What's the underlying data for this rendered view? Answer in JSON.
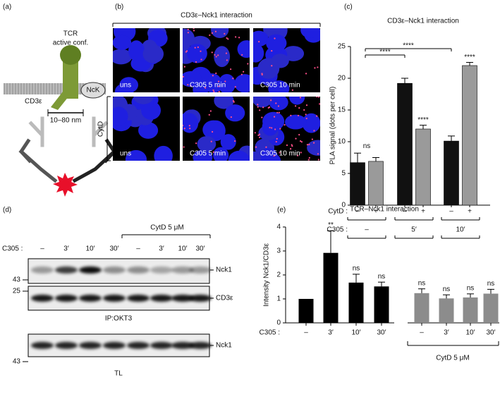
{
  "panels": {
    "a": "(a)",
    "b": "(b)",
    "c": "(c)",
    "d": "(d)",
    "e": "(e)"
  },
  "diagram": {
    "tcr": "TCR",
    "conf": "active conf.",
    "cd3": "CD3ε",
    "nck": "NcK",
    "distance": "10–80 nm"
  },
  "microscopy": {
    "title": "CD3ε–Nck1 interaction",
    "row_label": "CytD",
    "images": [
      [
        "uns",
        "C305 5 min",
        "C305 10 min"
      ],
      [
        "uns",
        "C305 5 min",
        "C305 10 min"
      ]
    ]
  },
  "blot": {
    "treatment_label": "CytD 5 μM",
    "x_label": "C305 :",
    "lanes": [
      "–",
      "3′",
      "10′",
      "30′",
      "–",
      "3′",
      "10′",
      "30′"
    ],
    "markers": [
      "43",
      "25",
      "43"
    ],
    "bands": [
      "Nck1",
      "CD3ε",
      "Nck1"
    ],
    "captions": [
      "IP:OKT3",
      "TL"
    ]
  },
  "chart_data": [
    {
      "type": "bar",
      "title": "CD3ε–Nck1 interaction",
      "y_label": "PLA signal (dots per cell)",
      "row_labels": [
        "CytD :",
        "C305 :"
      ],
      "categories": [
        "–",
        "5′",
        "10′"
      ],
      "series": [
        {
          "name": "–",
          "color": "#111111",
          "values": [
            6.7,
            19.2,
            10.1
          ],
          "errors": [
            1.5,
            0.8,
            0.8
          ]
        },
        {
          "name": "+",
          "color": "#9a9a9a",
          "values": [
            6.9,
            12.0,
            22.0
          ],
          "errors": [
            0.6,
            0.6,
            0.5
          ],
          "significance": [
            null,
            "****",
            "****"
          ]
        }
      ],
      "group_labels": [
        "ns",
        null,
        null
      ],
      "comparisons": [
        "****",
        "****"
      ],
      "ylim": [
        0,
        25
      ],
      "yticks": [
        0,
        5,
        10,
        15,
        20,
        25
      ]
    },
    {
      "type": "bar",
      "title": "TCR–Nck1 interaction",
      "y_label": "Intensity Nck1/CD3ε",
      "x_label": "C305 :",
      "group_label": "CytD 5 μM",
      "categories": [
        "–",
        "3′",
        "10′",
        "30′",
        "–",
        "3′",
        "10′",
        "30′"
      ],
      "values": [
        1.0,
        2.92,
        1.68,
        1.52,
        1.24,
        1.02,
        1.06,
        1.22
      ],
      "errors": [
        null,
        0.92,
        0.35,
        0.18,
        0.18,
        0.15,
        0.15,
        0.18
      ],
      "colors": [
        "#000000",
        "#000000",
        "#000000",
        "#000000",
        "#8c8c8c",
        "#8c8c8c",
        "#8c8c8c",
        "#8c8c8c"
      ],
      "significance": [
        null,
        "**",
        "ns",
        "ns",
        "ns",
        "ns",
        "ns",
        "ns"
      ],
      "ylim": [
        0,
        4
      ],
      "yticks": [
        0,
        1,
        2,
        3,
        4
      ]
    }
  ]
}
